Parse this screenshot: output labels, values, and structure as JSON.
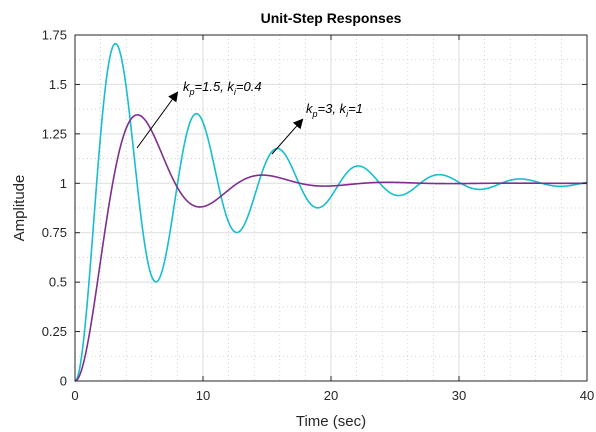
{
  "chart_data": {
    "type": "line",
    "title": "Unit-Step Responses",
    "xlabel": "Time (sec)",
    "ylabel": "Amplitude",
    "xlim": [
      0,
      40
    ],
    "ylim": [
      0,
      1.75
    ],
    "xticks": [
      0,
      10,
      20,
      30,
      40
    ],
    "yticks": [
      0,
      0.25,
      0.5,
      0.75,
      1,
      1.25,
      1.5,
      1.75
    ],
    "ytick_labels": [
      "0",
      "0.25",
      "0.5",
      "0.75",
      "1",
      "1.25",
      "1.5",
      "1.75"
    ],
    "grid": true,
    "minor_grid": true,
    "series": [
      {
        "color": "#17BECF",
        "response": {
          "final": 1.0,
          "damping": 0.11,
          "omega": 1.0,
          "zero": 0.0
        },
        "x": [
          0,
          1,
          2,
          3,
          3.3,
          4,
          5,
          6,
          7,
          8,
          8.8,
          10,
          11.5,
          12.5,
          14.5,
          16,
          17.5,
          20,
          23,
          25.5,
          28.5,
          31.5,
          34,
          37,
          40
        ],
        "y": [
          0,
          0.55,
          1.2,
          1.6,
          1.62,
          1.5,
          0.9,
          0.5,
          0.75,
          1.25,
          1.39,
          1.0,
          0.71,
          0.85,
          1.24,
          1.05,
          0.82,
          1.15,
          0.9,
          1.09,
          0.94,
          1.05,
          0.96,
          1.03,
          0.98
        ]
      },
      {
        "color": "#7E2F8E",
        "response": {
          "final": 1.0,
          "damping": 0.32,
          "omega": 0.68,
          "zero": 0.0
        },
        "x": [
          0,
          1,
          2,
          3,
          4.4,
          6,
          7.8,
          10,
          12,
          15,
          20,
          25,
          30,
          35,
          40
        ],
        "y": [
          0,
          0.25,
          0.65,
          1.0,
          1.17,
          1.05,
          0.88,
          0.93,
          1.03,
          1.0,
          1.01,
          1.0,
          1.0,
          1.0,
          1.0
        ]
      }
    ],
    "annotations": [
      {
        "parts": [
          "k",
          "p",
          "=1.5, k",
          "i",
          "=0.4"
        ],
        "target_series": 1
      },
      {
        "parts": [
          "k",
          "p",
          "=3, k",
          "i",
          "=1"
        ],
        "target_series": 0
      }
    ]
  }
}
